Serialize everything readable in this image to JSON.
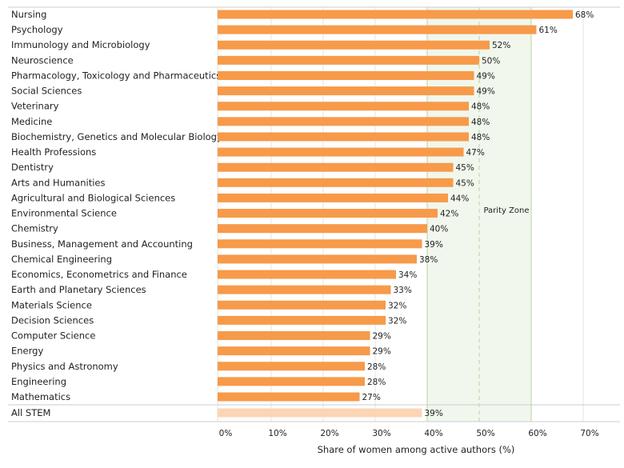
{
  "chart_data": {
    "type": "bar",
    "orientation": "horizontal",
    "categories": [
      "Nursing",
      "Psychology",
      "Immunology and Microbiology",
      "Neuroscience",
      "Pharmacology, Toxicology and Pharmaceutics",
      "Social Sciences",
      "Veterinary",
      "Medicine",
      "Biochemistry, Genetics and Molecular Biology",
      "Health Professions",
      "Dentistry",
      "Arts and Humanities",
      "Agricultural and Biological Sciences",
      "Environmental Science",
      "Chemistry",
      "Business, Management and Accounting",
      "Chemical Engineering",
      "Economics, Econometrics and Finance",
      "Earth and Planetary Sciences",
      "Materials Science",
      "Decision Sciences",
      "Computer Science",
      "Energy",
      "Physics and Astronomy",
      "Engineering",
      "Mathematics"
    ],
    "values": [
      68,
      61,
      52,
      50,
      49,
      49,
      48,
      48,
      48,
      47,
      45,
      45,
      44,
      42,
      40,
      39,
      38,
      34,
      33,
      32,
      32,
      29,
      29,
      28,
      28,
      27
    ],
    "summary": {
      "category": "All STEM",
      "value": 39
    },
    "xlabel": "Share of women among active authors (%)",
    "ylabel": "",
    "xlim": [
      0,
      70
    ],
    "xticks": [
      "0%",
      "10%",
      "20%",
      "30%",
      "40%",
      "50%",
      "60%",
      "70%"
    ],
    "annotation": {
      "label": "Parity Zone",
      "range": [
        40,
        60
      ],
      "midline": 50
    },
    "colors": {
      "bar": "#f79a4a",
      "summary_bar": "#fcd5b5",
      "parity_zone": "#f1f7ec",
      "parity_lines": "#b9d3a8"
    },
    "grid": true
  }
}
